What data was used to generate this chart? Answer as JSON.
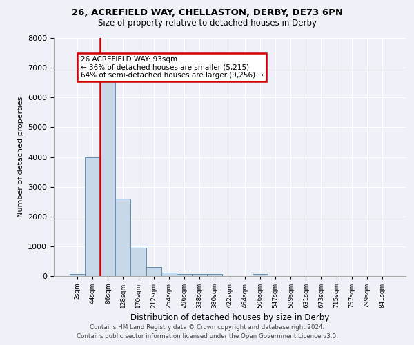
{
  "title_line1": "26, ACREFIELD WAY, CHELLASTON, DERBY, DE73 6PN",
  "title_line2": "Size of property relative to detached houses in Derby",
  "xlabel": "Distribution of detached houses by size in Derby",
  "ylabel": "Number of detached properties",
  "bin_labels": [
    "2sqm",
    "44sqm",
    "86sqm",
    "128sqm",
    "170sqm",
    "212sqm",
    "254sqm",
    "296sqm",
    "338sqm",
    "380sqm",
    "422sqm",
    "464sqm",
    "506sqm",
    "547sqm",
    "589sqm",
    "631sqm",
    "673sqm",
    "715sqm",
    "757sqm",
    "799sqm",
    "841sqm"
  ],
  "bar_values": [
    80,
    4000,
    6600,
    2600,
    950,
    300,
    120,
    80,
    80,
    80,
    0,
    0,
    80,
    0,
    0,
    0,
    0,
    0,
    0,
    0,
    0
  ],
  "bar_color": "#c8d8e8",
  "bar_edge_color": "#6090b8",
  "highlight_bar_index": 2,
  "highlight_color": "#cc0000",
  "annotation_line1": "26 ACREFIELD WAY: 93sqm",
  "annotation_line2": "← 36% of detached houses are smaller (5,215)",
  "annotation_line3": "64% of semi-detached houses are larger (9,256) →",
  "annotation_box_color": "#ffffff",
  "annotation_box_edge": "#cc0000",
  "ylim": [
    0,
    8000
  ],
  "yticks": [
    0,
    1000,
    2000,
    3000,
    4000,
    5000,
    6000,
    7000,
    8000
  ],
  "background_color": "#eef2f8",
  "grid_color": "#ffffff",
  "footer_line1": "Contains HM Land Registry data © Crown copyright and database right 2024.",
  "footer_line2": "Contains public sector information licensed under the Open Government Licence v3.0."
}
